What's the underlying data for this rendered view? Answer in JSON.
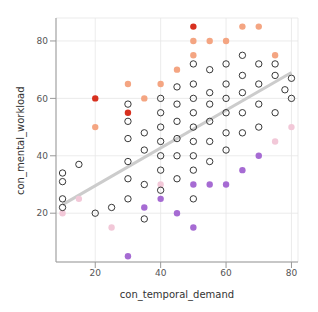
{
  "chart_data": {
    "type": "scatter",
    "x_label": "con_temporal_demand",
    "y_label": "con_mental_workload",
    "xlim": [
      8,
      82
    ],
    "ylim": [
      3,
      88
    ],
    "xticks": [
      20,
      40,
      60,
      80
    ],
    "yticks": [
      20,
      40,
      60,
      80
    ],
    "grid": true,
    "series": [
      {
        "type": "line",
        "color": "#cccccc",
        "x": [
          10,
          80
        ],
        "values": [
          23,
          69
        ]
      },
      {
        "type": "scatter",
        "marker": "circle",
        "color": "#f2c8d8",
        "x": [
          10,
          15,
          25,
          40,
          80,
          75
        ],
        "values": [
          20,
          25,
          15,
          30,
          50,
          45
        ]
      },
      {
        "type": "scatter",
        "marker": "circle",
        "color": "#f4a582",
        "x": [
          20,
          30,
          35,
          40,
          45,
          50,
          50,
          55,
          60,
          65,
          70,
          75
        ],
        "values": [
          50,
          65,
          60,
          65,
          70,
          75,
          80,
          80,
          80,
          85,
          85,
          75
        ]
      },
      {
        "type": "scatter",
        "marker": "circle",
        "color": "#d7301f",
        "x": [
          20,
          30,
          50
        ],
        "values": [
          60,
          55,
          85
        ]
      },
      {
        "type": "scatter",
        "marker": "circle",
        "color": "#a66bd3",
        "x": [
          30,
          35,
          40,
          45,
          50,
          50,
          55,
          60,
          65,
          70
        ],
        "values": [
          5,
          22,
          25,
          20,
          15,
          30,
          30,
          30,
          35,
          40
        ]
      },
      {
        "type": "scatter",
        "marker": "open_circle",
        "color": "#222222",
        "x": [
          10,
          10,
          10,
          10,
          15,
          20,
          25,
          30,
          30,
          30,
          30,
          30,
          30,
          35,
          35,
          35,
          35,
          40,
          40,
          40,
          40,
          40,
          40,
          40,
          45,
          45,
          45,
          45,
          45,
          45,
          50,
          50,
          50,
          50,
          50,
          50,
          50,
          50,
          50,
          55,
          55,
          55,
          55,
          55,
          55,
          60,
          60,
          60,
          60,
          60,
          60,
          65,
          65,
          65,
          65,
          65,
          70,
          70,
          70,
          70,
          75,
          75,
          75,
          78,
          80,
          80
        ],
        "values": [
          22,
          25,
          31,
          34,
          37,
          20,
          22,
          25,
          32,
          38,
          46,
          52,
          58,
          18,
          30,
          42,
          48,
          28,
          35,
          40,
          45,
          50,
          55,
          60,
          32,
          40,
          46,
          52,
          58,
          64,
          25,
          35,
          40,
          45,
          50,
          55,
          60,
          65,
          72,
          38,
          45,
          52,
          58,
          62,
          70,
          42,
          48,
          55,
          60,
          65,
          72,
          48,
          55,
          62,
          68,
          75,
          50,
          58,
          65,
          72,
          55,
          68,
          72,
          63,
          60,
          67
        ]
      }
    ]
  }
}
